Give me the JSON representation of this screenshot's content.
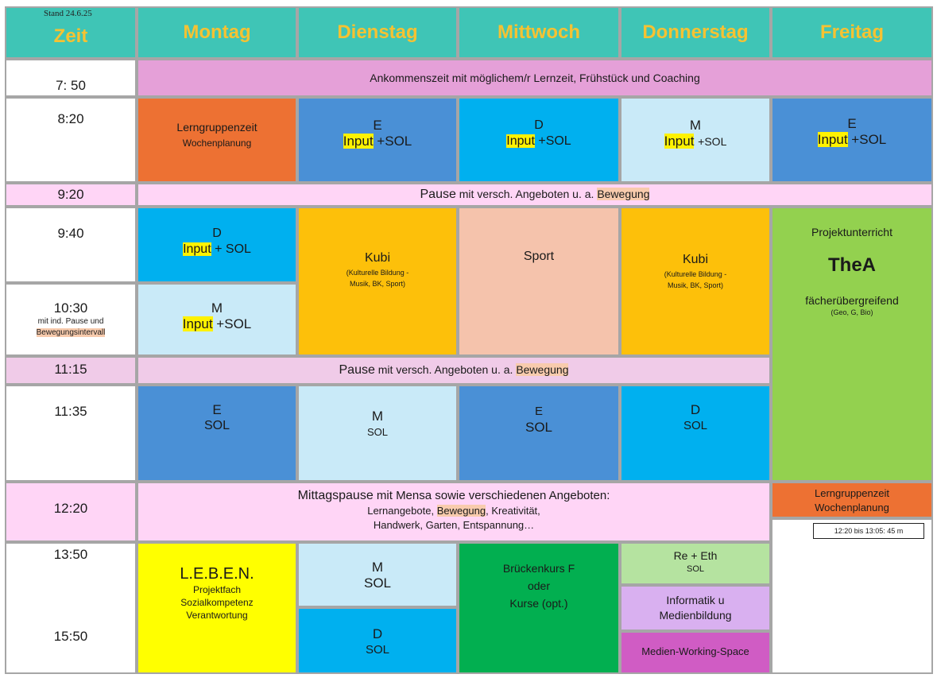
{
  "stand": "Stand 24.6.25",
  "headers": {
    "zeit": "Zeit",
    "mon": "Montag",
    "tue": "Dienstag",
    "wed": "Mittwoch",
    "thu": "Donnerstag",
    "fri": "Freitag"
  },
  "times": {
    "t0750": "7: 50",
    "t0820": "8:20",
    "t0920": "9:20",
    "t0940": "9:40",
    "t1030": "10:30",
    "t1030_note1": "mit ind. Pause und",
    "t1030_note2": "Bewegungsintervall",
    "t1115": "11:15",
    "t1135": "11:35",
    "t1220": "12:20",
    "t1350": "13:50",
    "t1550": "15:50"
  },
  "arrival": "Ankommenszeit mit möglichem/r Lernzeit, Frühstück und Coaching",
  "block1": {
    "mon_title": "Lerngruppenzeit",
    "mon_sub": "Wochenplanung",
    "tue_subject": "E",
    "wed_subject": "D",
    "thu_subject": "M",
    "fri_subject": "E",
    "input": "Input",
    "sol_plus": "+SOL",
    "sol_plus_space": "+ SOL"
  },
  "pause1": {
    "word": "Pause",
    "rest": " mit versch. Angeboten u. a. ",
    "bewegung": "Bewegung"
  },
  "block2": {
    "mon_subject": "D",
    "mon2_subject": "M",
    "kubi": "Kubi",
    "kubi_sub1": "(Kulturelle Bildung -",
    "kubi_sub2": "Musik, BK, Sport)",
    "sport": "Sport",
    "fri_top": "Projektunterricht",
    "fri_title": "TheA",
    "fri_sub": "fächerübergreifend",
    "fri_sub2": "(Geo, G, Bio)"
  },
  "block3": {
    "mon_subject": "E",
    "tue_subject": "M",
    "wed_subject": "E",
    "thu_subject": "D",
    "sol": "SOL"
  },
  "lunch": {
    "word": "Mittagspause",
    "rest": " mit Mensa sowie verschiedenen Angeboten:",
    "line2a": "Lernangebote, ",
    "line2b": "Bewegung",
    "line2c": ", Kreativität,",
    "line3": "Handwerk, Garten, Entspannung…",
    "fri_title": "Lerngruppenzeit",
    "fri_sub": "Wochenplanung",
    "fri_note": "12:20 bis 13:05: 45 m"
  },
  "block4": {
    "mon_title": "L.E.B.E.N.",
    "mon_l1": "Projektfach",
    "mon_l2": "Sozialkompetenz",
    "mon_l3": "Verantwortung",
    "tue_top_subject": "M",
    "tue_bot_subject": "D",
    "wed_l1": "Brückenkurs F",
    "wed_l2": "oder",
    "wed_l3": "Kurse (opt.)",
    "thu_a1": "Re + Eth",
    "thu_a2": "SOL",
    "thu_b1": "Informatik u",
    "thu_b2": "Medienbildung",
    "thu_c": "Medien-Working-Space"
  },
  "colors": {
    "header_bg": "#3fc5b6",
    "header_text": "#f6c232",
    "orange": "#ed7133",
    "blue": "#4a90d6",
    "cyan": "#00b0ef",
    "light_blue": "#c9eaf8",
    "gold": "#fdc00a",
    "peach": "#f5c3ac",
    "green": "#93d14f",
    "dark_green": "#02af50",
    "pink_band": "#ffd5f6",
    "magenta_band": "#e5a0d8",
    "yellow": "#ffff00",
    "highlight": "#fff200"
  }
}
